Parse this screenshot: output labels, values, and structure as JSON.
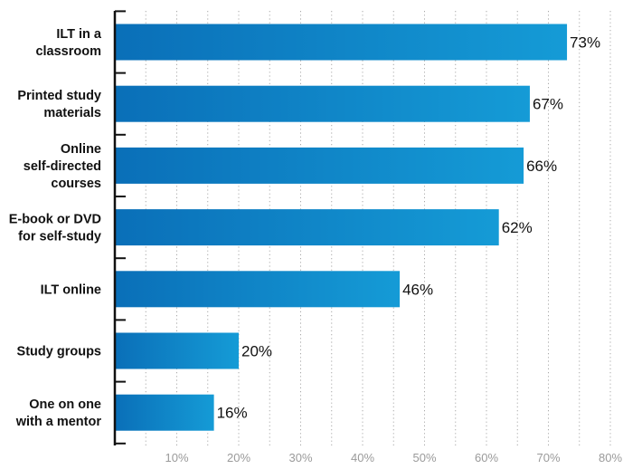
{
  "chart_data": {
    "type": "bar",
    "orientation": "horizontal",
    "categories": [
      [
        "ILT in a",
        "classroom"
      ],
      [
        "Printed study",
        "materials"
      ],
      [
        "Online",
        "self-directed",
        "courses"
      ],
      [
        "E-book or DVD",
        "for self-study"
      ],
      [
        "ILT online"
      ],
      [
        "Study groups"
      ],
      [
        "One on one",
        "with a mentor"
      ]
    ],
    "values": [
      73,
      67,
      66,
      62,
      46,
      20,
      16
    ],
    "value_labels": [
      "73%",
      "67%",
      "66%",
      "62%",
      "46%",
      "20%",
      "16%"
    ],
    "xlim": [
      0,
      80
    ],
    "xticks": [
      10,
      20,
      30,
      40,
      50,
      60,
      70,
      80
    ],
    "xtick_labels": [
      "10%",
      "20%",
      "30%",
      "40%",
      "50%",
      "60%",
      "70%",
      "80%"
    ],
    "grid": "vertical dotted",
    "legend": "none",
    "colors": {
      "bar_start": "#0a6fb8",
      "bar_end": "#159bd6",
      "axis": "#111111",
      "grid": "#a8a8a8"
    }
  }
}
